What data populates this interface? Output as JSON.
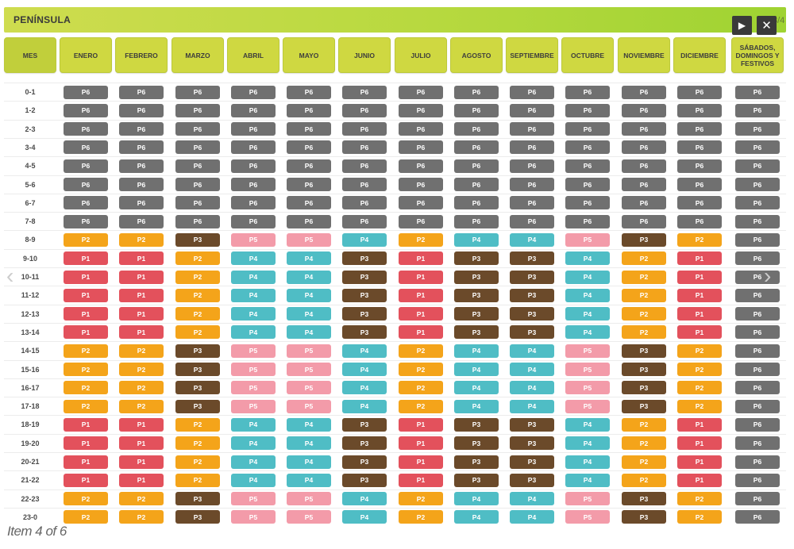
{
  "window": {
    "title": "PENÍNSULA",
    "counter": "3/4"
  },
  "controls": {
    "play_icon": "▶",
    "close_icon": "✕"
  },
  "nav": {
    "prev_icon": "‹",
    "next_icon": "›"
  },
  "caption": "Item 4 of 6",
  "table": {
    "columns": [
      "MES",
      "ENERO",
      "FEBRERO",
      "MARZO",
      "ABRIL",
      "MAYO",
      "JUNIO",
      "JULIO",
      "AGOSTO",
      "SEPTIEMBRE",
      "OCTUBRE",
      "NOVIEMBRE",
      "DICIEMBRE",
      "SÁBADOS, DOMINGOS Y FESTIVOS"
    ],
    "rows": [
      {
        "label": "0-1",
        "cells": [
          "P6",
          "P6",
          "P6",
          "P6",
          "P6",
          "P6",
          "P6",
          "P6",
          "P6",
          "P6",
          "P6",
          "P6",
          "P6"
        ]
      },
      {
        "label": "1-2",
        "cells": [
          "P6",
          "P6",
          "P6",
          "P6",
          "P6",
          "P6",
          "P6",
          "P6",
          "P6",
          "P6",
          "P6",
          "P6",
          "P6"
        ]
      },
      {
        "label": "2-3",
        "cells": [
          "P6",
          "P6",
          "P6",
          "P6",
          "P6",
          "P6",
          "P6",
          "P6",
          "P6",
          "P6",
          "P6",
          "P6",
          "P6"
        ]
      },
      {
        "label": "3-4",
        "cells": [
          "P6",
          "P6",
          "P6",
          "P6",
          "P6",
          "P6",
          "P6",
          "P6",
          "P6",
          "P6",
          "P6",
          "P6",
          "P6"
        ]
      },
      {
        "label": "4-5",
        "cells": [
          "P6",
          "P6",
          "P6",
          "P6",
          "P6",
          "P6",
          "P6",
          "P6",
          "P6",
          "P6",
          "P6",
          "P6",
          "P6"
        ]
      },
      {
        "label": "5-6",
        "cells": [
          "P6",
          "P6",
          "P6",
          "P6",
          "P6",
          "P6",
          "P6",
          "P6",
          "P6",
          "P6",
          "P6",
          "P6",
          "P6"
        ]
      },
      {
        "label": "6-7",
        "cells": [
          "P6",
          "P6",
          "P6",
          "P6",
          "P6",
          "P6",
          "P6",
          "P6",
          "P6",
          "P6",
          "P6",
          "P6",
          "P6"
        ]
      },
      {
        "label": "7-8",
        "cells": [
          "P6",
          "P6",
          "P6",
          "P6",
          "P6",
          "P6",
          "P6",
          "P6",
          "P6",
          "P6",
          "P6",
          "P6",
          "P6"
        ]
      },
      {
        "label": "8-9",
        "cells": [
          "P2",
          "P2",
          "P3",
          "P5",
          "P5",
          "P4",
          "P2",
          "P4",
          "P4",
          "P5",
          "P3",
          "P2",
          "P6"
        ]
      },
      {
        "label": "9-10",
        "cells": [
          "P1",
          "P1",
          "P2",
          "P4",
          "P4",
          "P3",
          "P1",
          "P3",
          "P3",
          "P4",
          "P2",
          "P1",
          "P6"
        ]
      },
      {
        "label": "10-11",
        "cells": [
          "P1",
          "P1",
          "P2",
          "P4",
          "P4",
          "P3",
          "P1",
          "P3",
          "P3",
          "P4",
          "P2",
          "P1",
          "P6"
        ]
      },
      {
        "label": "11-12",
        "cells": [
          "P1",
          "P1",
          "P2",
          "P4",
          "P4",
          "P3",
          "P1",
          "P3",
          "P3",
          "P4",
          "P2",
          "P1",
          "P6"
        ]
      },
      {
        "label": "12-13",
        "cells": [
          "P1",
          "P1",
          "P2",
          "P4",
          "P4",
          "P3",
          "P1",
          "P3",
          "P3",
          "P4",
          "P2",
          "P1",
          "P6"
        ]
      },
      {
        "label": "13-14",
        "cells": [
          "P1",
          "P1",
          "P2",
          "P4",
          "P4",
          "P3",
          "P1",
          "P3",
          "P3",
          "P4",
          "P2",
          "P1",
          "P6"
        ]
      },
      {
        "label": "14-15",
        "cells": [
          "P2",
          "P2",
          "P3",
          "P5",
          "P5",
          "P4",
          "P2",
          "P4",
          "P4",
          "P5",
          "P3",
          "P2",
          "P6"
        ]
      },
      {
        "label": "15-16",
        "cells": [
          "P2",
          "P2",
          "P3",
          "P5",
          "P5",
          "P4",
          "P2",
          "P4",
          "P4",
          "P5",
          "P3",
          "P2",
          "P6"
        ]
      },
      {
        "label": "16-17",
        "cells": [
          "P2",
          "P2",
          "P3",
          "P5",
          "P5",
          "P4",
          "P2",
          "P4",
          "P4",
          "P5",
          "P3",
          "P2",
          "P6"
        ]
      },
      {
        "label": "17-18",
        "cells": [
          "P2",
          "P2",
          "P3",
          "P5",
          "P5",
          "P4",
          "P2",
          "P4",
          "P4",
          "P5",
          "P3",
          "P2",
          "P6"
        ]
      },
      {
        "label": "18-19",
        "cells": [
          "P1",
          "P1",
          "P2",
          "P4",
          "P4",
          "P3",
          "P1",
          "P3",
          "P3",
          "P4",
          "P2",
          "P1",
          "P6"
        ]
      },
      {
        "label": "19-20",
        "cells": [
          "P1",
          "P1",
          "P2",
          "P4",
          "P4",
          "P3",
          "P1",
          "P3",
          "P3",
          "P4",
          "P2",
          "P1",
          "P6"
        ]
      },
      {
        "label": "20-21",
        "cells": [
          "P1",
          "P1",
          "P2",
          "P4",
          "P4",
          "P3",
          "P1",
          "P3",
          "P3",
          "P4",
          "P2",
          "P1",
          "P6"
        ]
      },
      {
        "label": "21-22",
        "cells": [
          "P1",
          "P1",
          "P2",
          "P4",
          "P4",
          "P3",
          "P1",
          "P3",
          "P3",
          "P4",
          "P2",
          "P1",
          "P6"
        ]
      },
      {
        "label": "22-23",
        "cells": [
          "P2",
          "P2",
          "P3",
          "P5",
          "P5",
          "P4",
          "P2",
          "P4",
          "P4",
          "P5",
          "P3",
          "P2",
          "P6"
        ]
      },
      {
        "label": "23-0",
        "cells": [
          "P2",
          "P2",
          "P3",
          "P5",
          "P5",
          "P4",
          "P2",
          "P4",
          "P4",
          "P5",
          "P3",
          "P2",
          "P6"
        ]
      }
    ]
  },
  "colors": {
    "P1": "#e3515c",
    "P2": "#f4a41a",
    "P3": "#6b4a2a",
    "P4": "#4fbdc5",
    "P5": "#f39ba9",
    "P6": "#707070"
  }
}
